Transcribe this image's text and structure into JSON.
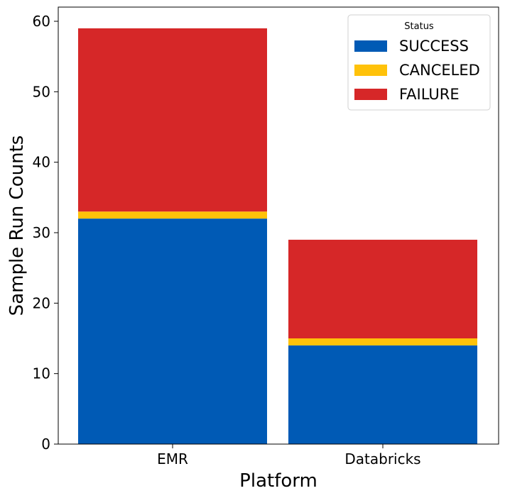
{
  "chart_data": {
    "type": "bar",
    "stacked": true,
    "title": "",
    "xlabel": "Platform",
    "ylabel": "Sample Run Counts",
    "categories": [
      "EMR",
      "Databricks"
    ],
    "series": [
      {
        "name": "SUCCESS",
        "color": "#005ab5",
        "values": [
          32,
          14
        ]
      },
      {
        "name": "CANCELED",
        "color": "#ffc20a",
        "values": [
          1,
          1
        ]
      },
      {
        "name": "FAILURE",
        "color": "#d62728",
        "values": [
          26,
          14
        ]
      }
    ],
    "totals": [
      59,
      29
    ],
    "ylim": [
      0,
      62
    ],
    "yticks": [
      0,
      10,
      20,
      30,
      40,
      50,
      60
    ],
    "grid": false,
    "legend": {
      "title": "Status",
      "position": "upper right",
      "entries": [
        "SUCCESS",
        "CANCELED",
        "FAILURE"
      ]
    }
  }
}
